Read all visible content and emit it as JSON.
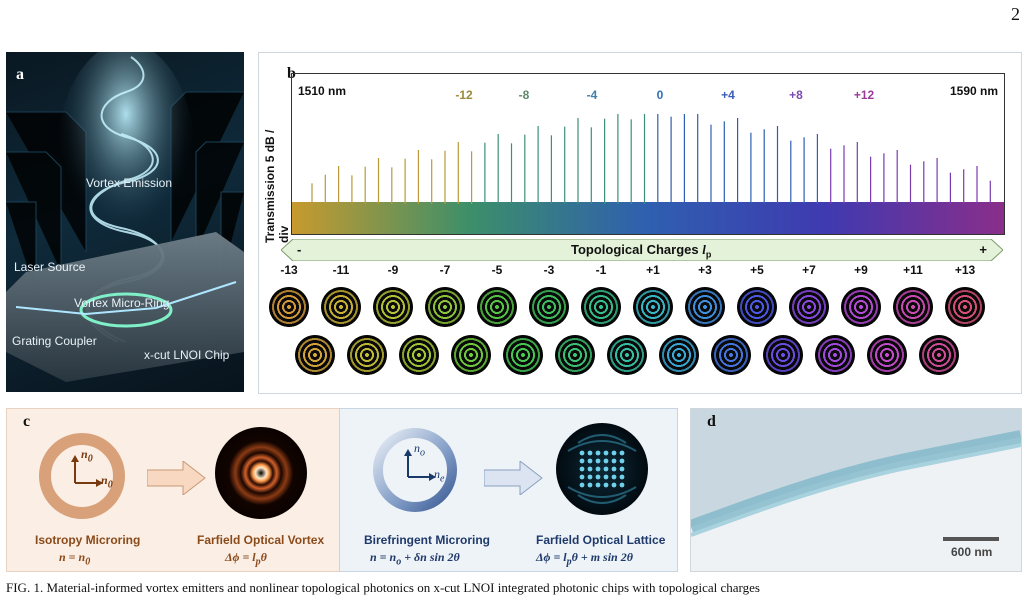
{
  "page_number": "2",
  "panel_a": {
    "label": "a",
    "texts": [
      "Vortex Emission",
      "Laser Source",
      "Vortex Micro-Ring",
      "Grating Coupler",
      "x-cut LNOI Chip"
    ]
  },
  "panel_b": {
    "label": "b",
    "start_wavelength": "1510 nm",
    "end_wavelength": "1590 nm",
    "ylabel": "Transmission  5 dB / div",
    "top_charges": [
      "-12",
      "-8",
      "-4",
      "0",
      "+4",
      "+8",
      "+12"
    ],
    "top_charge_colors": [
      "#9a8a3a",
      "#5f8a6a",
      "#3f7fa8",
      "#2f6fb8",
      "#3a5fb8",
      "#7a4ab0",
      "#9a3a9a"
    ],
    "arrow_title": "Topological Charges",
    "arrow_title_symbol": "l",
    "arrow_title_sub": "p",
    "arrow_minus": "-",
    "arrow_plus": "+",
    "charge_labels": [
      "-13",
      "-11",
      "-9",
      "-7",
      "-5",
      "-3",
      "-1",
      "+1",
      "+3",
      "+5",
      "+7",
      "+9",
      "+11",
      "+13"
    ],
    "mode_colors_row1": [
      "#d49a3a",
      "#c9b235",
      "#b5c335",
      "#8dc53a",
      "#55c645",
      "#3fc05e",
      "#35bf8a",
      "#38b8c6",
      "#3f8fe0",
      "#4d5ae6",
      "#8a4ae0",
      "#b54ad6",
      "#c94ab3",
      "#d8507a"
    ],
    "mode_colors_row2": [
      "#d4a53a",
      "#c2bb35",
      "#a3c636",
      "#6fcb3e",
      "#46c853",
      "#3cc274",
      "#36bfa5",
      "#3aa8d6",
      "#4577e2",
      "#6a4ee4",
      "#a249de",
      "#c44acb",
      "#d04d9a"
    ]
  },
  "panel_c": {
    "label": "c",
    "left": {
      "ring_arrow_top": "n",
      "ring_arrow_top_sub": "0",
      "ring_arrow_right": "n",
      "ring_arrow_right_sub": "0",
      "title1": "Isotropy Microring",
      "eq1": "n = n",
      "eq1_sub": "0",
      "title2": "Farfield Optical Vortex",
      "eq2": "Δϕ = l",
      "eq2_sub": "p",
      "eq2_tail": "θ"
    },
    "right": {
      "ring_arrow_top": "n",
      "ring_arrow_top_sub": "o",
      "ring_arrow_right": "n",
      "ring_arrow_right_sub": "e",
      "title1": "Birefringent Microring",
      "eq1": "n = n",
      "eq1_sub": "o",
      "eq1_tail": " + δn sin 2θ",
      "title2": "Farfield Optical Lattice",
      "eq2": "Δϕ = l",
      "eq2_sub": "p",
      "eq2_tail": "θ + m sin 2θ"
    }
  },
  "panel_d": {
    "label": "d",
    "scalebar": "600 nm"
  },
  "caption": "FIG. 1.  Material-informed vortex emitters and nonlinear topological photonics on x-cut LNOI integrated photonic chips with topological charges"
}
